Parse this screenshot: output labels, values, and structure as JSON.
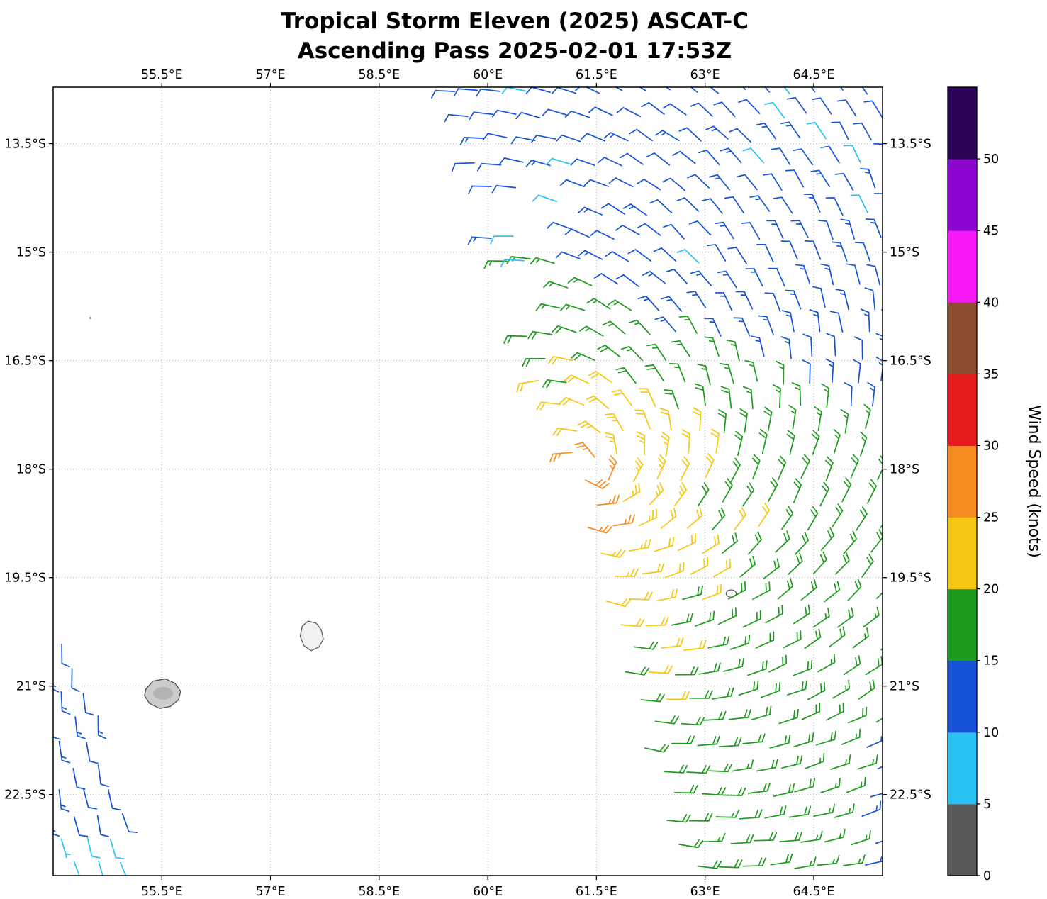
{
  "chart_data": {
    "type": "wind_barb_map",
    "title": "Tropical Storm Eleven (2025) ASCAT-C",
    "subtitle": "Ascending Pass 2025-02-01 17:53Z",
    "storm_name": "Tropical Storm Eleven (2025)",
    "instrument": "ASCAT-C",
    "pass_type": "Ascending Pass",
    "valid_time": "2025-02-01 17:53Z",
    "map_extent": {
      "lon_min": 54.0,
      "lon_max": 65.45,
      "lat_s_min": 12.72,
      "lat_s_max": 23.62
    },
    "grid": {
      "visible": true,
      "style": "dotted",
      "color": "#b0b0b0"
    },
    "x_axis": {
      "tick_values": [
        55.5,
        57,
        58.5,
        60,
        61.5,
        63,
        64.5
      ],
      "tick_labels": [
        "55.5°E",
        "57°E",
        "58.5°E",
        "60°E",
        "61.5°E",
        "63°E",
        "64.5°E"
      ],
      "labels_on": [
        "top",
        "bottom"
      ]
    },
    "y_axis": {
      "tick_values": [
        13.5,
        15,
        16.5,
        18,
        19.5,
        21,
        22.5
      ],
      "tick_labels": [
        "13.5°S",
        "15°S",
        "16.5°S",
        "18°S",
        "19.5°S",
        "21°S",
        "22.5°S"
      ],
      "labels_on": [
        "left",
        "right"
      ]
    },
    "colorbar": {
      "label": "Wind Speed (knots)",
      "tick_values": [
        0,
        5,
        10,
        15,
        20,
        25,
        30,
        35,
        40,
        45,
        50
      ],
      "tick_labels": [
        "0",
        "5",
        "10",
        "15",
        "20",
        "25",
        "30",
        "35",
        "40",
        "45",
        "50"
      ],
      "bin_edges": [
        0,
        5,
        10,
        15,
        20,
        25,
        30,
        35,
        40,
        45,
        50
      ],
      "top_edge": 55,
      "colors": [
        "#595959",
        "#29c2f2",
        "#1553d6",
        "#1d9b1d",
        "#f6c712",
        "#f68c1f",
        "#e51c1c",
        "#8a4d2d",
        "#f618f6",
        "#8d06cf",
        "#2a0457"
      ]
    },
    "islands": {
      "reunion": [
        [
          55.28,
          21.04
        ],
        [
          55.38,
          20.93
        ],
        [
          55.55,
          20.9
        ],
        [
          55.68,
          20.96
        ],
        [
          55.76,
          21.07
        ],
        [
          55.73,
          21.19
        ],
        [
          55.62,
          21.28
        ],
        [
          55.47,
          21.31
        ],
        [
          55.33,
          21.24
        ],
        [
          55.26,
          21.13
        ]
      ],
      "mauritius": [
        [
          57.52,
          20.1
        ],
        [
          57.63,
          20.13
        ],
        [
          57.7,
          20.22
        ],
        [
          57.73,
          20.35
        ],
        [
          57.67,
          20.46
        ],
        [
          57.56,
          20.51
        ],
        [
          57.46,
          20.44
        ],
        [
          57.41,
          20.31
        ],
        [
          57.44,
          20.17
        ]
      ],
      "rodrigues": {
        "lon": 63.36,
        "lat": 19.72,
        "rx": 0.07,
        "ry": 0.05
      },
      "islet_dot": {
        "lon": 54.51,
        "lat": 15.91
      }
    },
    "wind_field": {
      "barb_convention": {
        "half_barb_kt": 5,
        "full_barb_kt": 10,
        "flag_kt": 50
      },
      "rotation": "clockwise",
      "inflow": 0.38,
      "spacing_deg": 0.335,
      "center": {
        "lon": 61.35,
        "lat_s": 18.1
      },
      "max_observed_kt": 29,
      "model": {
        "base_north": 12.0,
        "base_mid": 14.8,
        "base_south": 17.5,
        "base_top": 11.2,
        "green_lat0": 15.55,
        "green_lon_ref": 61.0,
        "green_slope": 0.5,
        "band_half_width": 0.4,
        "amp": 11.0,
        "sigma": 1.5,
        "lon_scale": 1.1,
        "lat_scale_north": 1.55,
        "lat_scale_south": 0.78,
        "max_kt": 29,
        "se_falloff_lon": 64.2,
        "se_falloff_rate": 3.0
      },
      "main_swath": {
        "lat_min": 12.78,
        "lat_max": 23.58,
        "right_lon": 65.6,
        "left_edge": [
          [
            12.75,
            59.5
          ],
          [
            13.5,
            59.75
          ],
          [
            14.5,
            60.0
          ],
          [
            15.5,
            60.2
          ],
          [
            16.5,
            60.6
          ],
          [
            17.2,
            60.9
          ],
          [
            18.0,
            61.2
          ],
          [
            19.0,
            61.45
          ],
          [
            20.0,
            61.7
          ],
          [
            21.0,
            61.95
          ],
          [
            22.0,
            62.25
          ],
          [
            23.0,
            62.5
          ],
          [
            23.62,
            62.68
          ]
        ],
        "gaps": [
          {
            "lon": 60.78,
            "lat": 14.5,
            "rx": 0.62,
            "ry": 0.48
          },
          {
            "lon": 60.45,
            "lat": 15.55,
            "rx": 0.35,
            "ry": 0.28
          }
        ]
      },
      "secondary_swath": {
        "lat_min": 20.1,
        "lat_max": 23.55,
        "left_lon": 53.95,
        "right_edge": [
          [
            20.1,
            54.28
          ],
          [
            21.0,
            54.55
          ],
          [
            22.0,
            54.8
          ],
          [
            23.0,
            55.05
          ],
          [
            23.62,
            55.2
          ]
        ],
        "speed_kt": 12,
        "bottom_speed_kt": 8.5,
        "bottom_lat": 23.1
      },
      "extra_barbs": [
        {
          "lon": 60.35,
          "lat": 14.78,
          "kt": 8.5
        },
        {
          "lon": 60.95,
          "lat": 14.3,
          "kt": 9.0
        },
        {
          "lon": 60.5,
          "lat": 15.12,
          "kt": 9.0
        },
        {
          "lon": 61.15,
          "lat": 14.68,
          "kt": 12.0
        }
      ]
    }
  }
}
